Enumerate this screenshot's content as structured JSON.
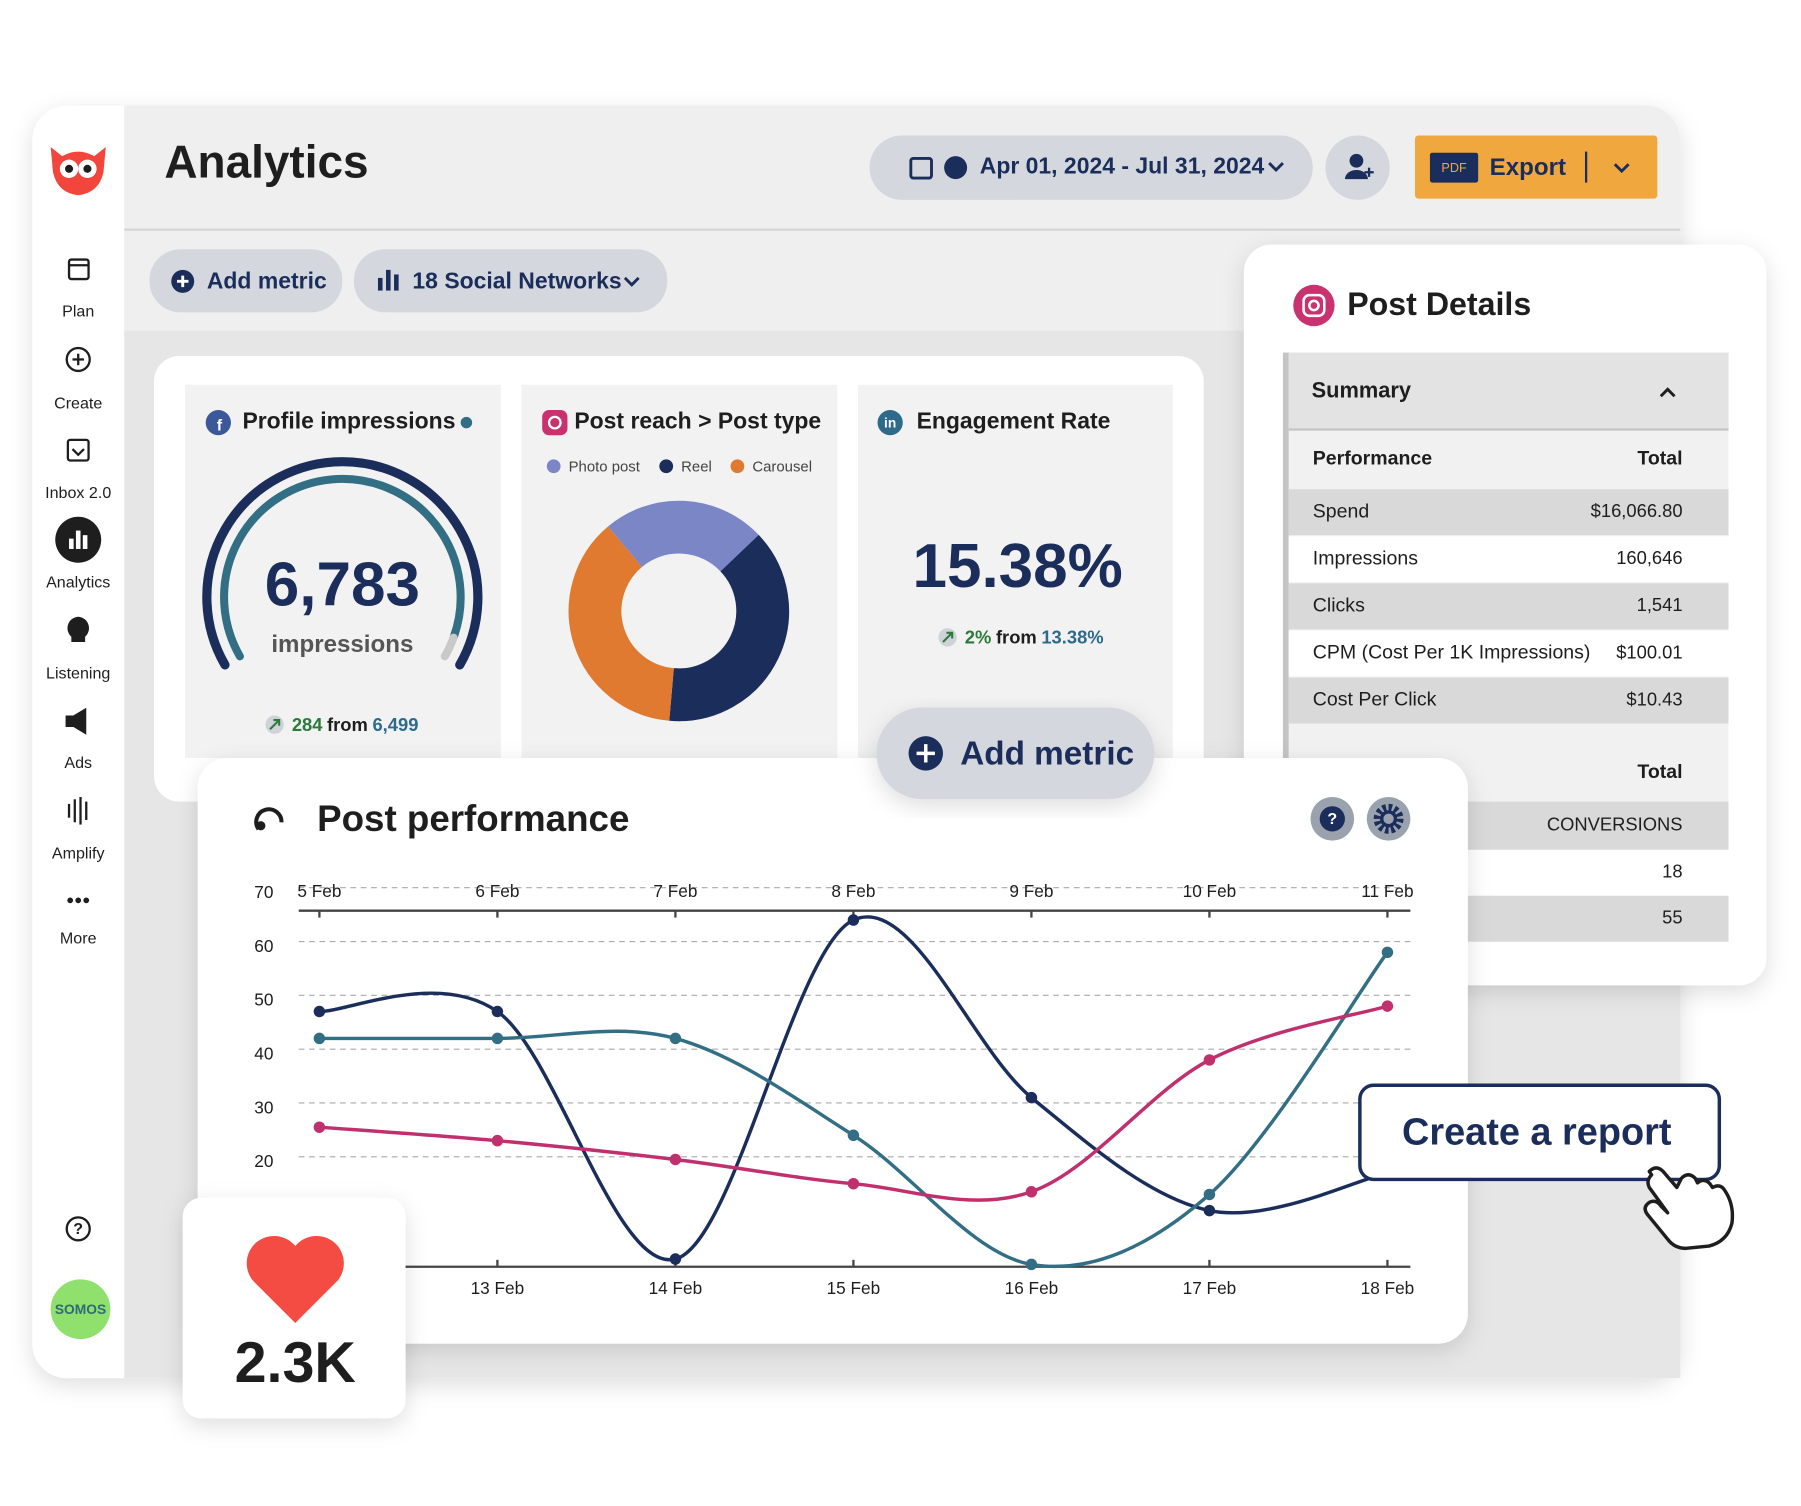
{
  "header": {
    "title": "Analytics",
    "date_range": "Apr 01, 2024 - Jul 31, 2024",
    "pdf": "PDF",
    "export": "Export"
  },
  "sidebar": {
    "items": [
      "Plan",
      "Create",
      "Inbox 2.0",
      "Analytics",
      "Listening",
      "Ads",
      "Amplify",
      "More"
    ],
    "avatar": "SOMOS"
  },
  "toolbar": {
    "add_metric": "Add metric",
    "networks": "18 Social Networks"
  },
  "profile_impressions": {
    "title": "Profile impressions",
    "value": "6,783",
    "unit": "impressions",
    "change": "284",
    "from": "from",
    "previous": "6,499"
  },
  "post_reach": {
    "title": "Post reach > Post type",
    "donut": {
      "type": "pie",
      "categories": [
        "Photo post",
        "Reel",
        "Carousel"
      ],
      "values": [
        24,
        38.5,
        37.5
      ],
      "colors": [
        "#7b86c6",
        "#1b2d5a",
        "#e07a31"
      ]
    }
  },
  "engagement_rate": {
    "title": "Engagement Rate",
    "value": "15.38%",
    "change": "2%",
    "from": "from",
    "previous": "13.38%"
  },
  "add_metric_card": "Add metric",
  "post_details": {
    "title": "Post Details",
    "summary": "Summary",
    "columns": [
      "Performance",
      "Total"
    ],
    "rows": [
      [
        "Spend",
        "$16,066.80"
      ],
      [
        "Impressions",
        "160,646"
      ],
      [
        "Clicks",
        "1,541"
      ],
      [
        "CPM (Cost Per 1K Impressions)",
        "$100.01"
      ],
      [
        "Cost Per Click",
        "$10.43"
      ]
    ],
    "section2": {
      "total": "Total",
      "header": "CONVERSIONS",
      "values": [
        "18",
        "55"
      ]
    }
  },
  "post_performance": {
    "type": "line",
    "title": "Post performance",
    "top_categories": [
      "5 Feb",
      "6 Feb",
      "7 Feb",
      "8 Feb",
      "9 Feb",
      "10 Feb",
      "11 Feb"
    ],
    "categories": [
      null,
      "13 Feb",
      "14 Feb",
      "15 Feb",
      "16 Feb",
      "17 Feb",
      "18 Feb"
    ],
    "ylim": [
      0,
      70
    ],
    "yticks": [
      20,
      30,
      40,
      50,
      60,
      70
    ],
    "grid": true,
    "series": [
      {
        "color": "#1b2d5a",
        "values": [
          47,
          47,
          1,
          64,
          31,
          10,
          17
        ]
      },
      {
        "color": "#336f84",
        "values": [
          42,
          42,
          42,
          24,
          0,
          13,
          58
        ]
      },
      {
        "color": "#c0306f",
        "values": [
          25.5,
          23,
          19.5,
          15,
          13.5,
          38,
          48
        ]
      }
    ]
  },
  "likes": "2.3K",
  "cta": "Create a report"
}
